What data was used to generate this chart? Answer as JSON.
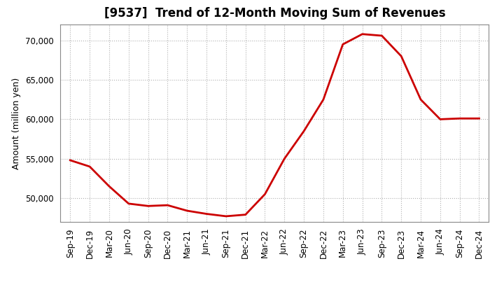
{
  "title": "[9537]  Trend of 12-Month Moving Sum of Revenues",
  "ylabel": "Amount (million yen)",
  "line_color": "#cc0000",
  "background_color": "#ffffff",
  "plot_bg_color": "#ffffff",
  "grid_color": "#b0b0b0",
  "x_labels": [
    "Sep-19",
    "Dec-19",
    "Mar-20",
    "Jun-20",
    "Sep-20",
    "Dec-20",
    "Mar-21",
    "Jun-21",
    "Sep-21",
    "Dec-21",
    "Mar-22",
    "Jun-22",
    "Sep-22",
    "Dec-22",
    "Mar-23",
    "Jun-23",
    "Sep-23",
    "Dec-23",
    "Mar-24",
    "Jun-24",
    "Sep-24",
    "Dec-24"
  ],
  "y_values": [
    54800,
    54000,
    51500,
    49300,
    49000,
    49100,
    48400,
    48000,
    47700,
    47900,
    50500,
    55000,
    58500,
    62500,
    69500,
    70800,
    70600,
    68000,
    62500,
    60000,
    60100,
    60100
  ],
  "ylim": [
    47000,
    72000
  ],
  "yticks": [
    50000,
    55000,
    60000,
    65000,
    70000
  ],
  "title_fontsize": 12,
  "tick_fontsize": 8.5,
  "label_fontsize": 9,
  "line_width": 2.0
}
